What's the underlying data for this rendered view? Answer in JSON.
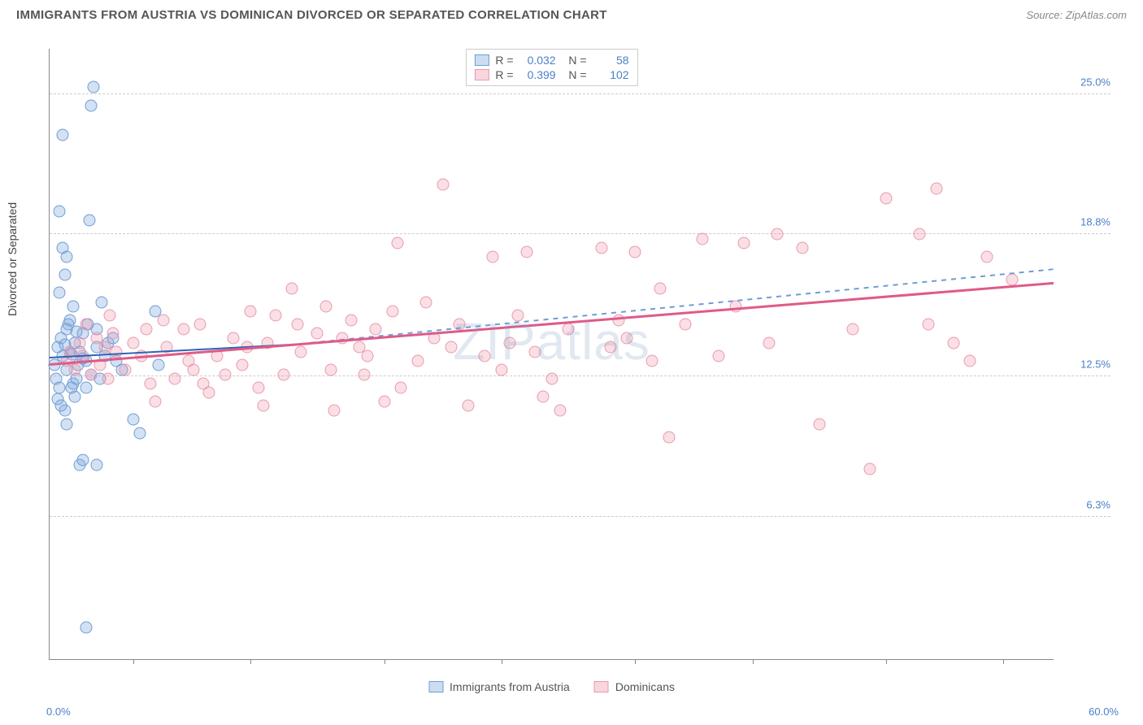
{
  "title": "IMMIGRANTS FROM AUSTRIA VS DOMINICAN DIVORCED OR SEPARATED CORRELATION CHART",
  "source": "Source: ZipAtlas.com",
  "ylabel": "Divorced or Separated",
  "watermark": "ZIPatlas",
  "chart": {
    "type": "scatter",
    "xlim": [
      0,
      60
    ],
    "ylim": [
      0,
      27
    ],
    "xlim_labels": [
      "0.0%",
      "60.0%"
    ],
    "y_gridlines": [
      6.3,
      12.5,
      18.8,
      25.0
    ],
    "y_grid_labels": [
      "6.3%",
      "12.5%",
      "18.8%",
      "25.0%"
    ],
    "x_tick_positions": [
      5,
      12,
      20,
      27,
      35,
      42,
      50,
      57
    ],
    "background_color": "#ffffff",
    "grid_color": "#cccccc",
    "axis_color": "#888888",
    "marker_radius": 7.5,
    "series": [
      {
        "key": "austria",
        "label": "Immigrants from Austria",
        "R": "0.032",
        "N": "58",
        "color_fill": "rgba(130,170,220,0.35)",
        "color_stroke": "#6d9dd6",
        "regression_color": "#2e64b5",
        "regression": {
          "x1": 0,
          "y1": 13.3,
          "x2": 15,
          "y2": 13.9,
          "x_dash_to": 60,
          "y_dash_to": 17.2
        },
        "points": [
          [
            0.3,
            13.0
          ],
          [
            0.4,
            12.4
          ],
          [
            0.5,
            13.8
          ],
          [
            0.6,
            12.0
          ],
          [
            0.7,
            14.2
          ],
          [
            0.5,
            11.5
          ],
          [
            0.8,
            18.2
          ],
          [
            1.0,
            17.8
          ],
          [
            0.6,
            19.8
          ],
          [
            1.2,
            15.0
          ],
          [
            0.9,
            11.0
          ],
          [
            1.0,
            10.4
          ],
          [
            1.3,
            13.5
          ],
          [
            1.5,
            14.0
          ],
          [
            1.0,
            12.8
          ],
          [
            1.4,
            12.2
          ],
          [
            1.8,
            13.6
          ],
          [
            2.0,
            14.4
          ],
          [
            2.2,
            13.2
          ],
          [
            2.5,
            12.6
          ],
          [
            1.5,
            11.6
          ],
          [
            1.7,
            13.0
          ],
          [
            2.8,
            13.8
          ],
          [
            3.0,
            12.4
          ],
          [
            2.3,
            14.8
          ],
          [
            3.3,
            13.4
          ],
          [
            3.5,
            14.0
          ],
          [
            4.0,
            13.2
          ],
          [
            4.3,
            12.8
          ],
          [
            3.8,
            14.2
          ],
          [
            0.8,
            23.2
          ],
          [
            2.5,
            24.5
          ],
          [
            2.6,
            25.3
          ],
          [
            2.4,
            19.4
          ],
          [
            2.8,
            14.6
          ],
          [
            5.0,
            10.6
          ],
          [
            5.4,
            10.0
          ],
          [
            1.8,
            8.6
          ],
          [
            2.0,
            8.8
          ],
          [
            2.8,
            8.6
          ],
          [
            2.2,
            1.4
          ],
          [
            6.3,
            15.4
          ],
          [
            6.5,
            13.0
          ],
          [
            1.2,
            13.6
          ],
          [
            1.6,
            14.5
          ],
          [
            2.0,
            13.3
          ],
          [
            0.6,
            16.2
          ],
          [
            0.9,
            17.0
          ],
          [
            1.1,
            14.8
          ],
          [
            1.3,
            12.0
          ],
          [
            0.8,
            13.4
          ],
          [
            1.0,
            14.6
          ],
          [
            1.4,
            15.6
          ],
          [
            1.6,
            12.4
          ],
          [
            2.2,
            12.0
          ],
          [
            0.7,
            11.2
          ],
          [
            0.9,
            13.9
          ],
          [
            3.1,
            15.8
          ]
        ]
      },
      {
        "key": "dominicans",
        "label": "Dominicans",
        "R": "0.399",
        "N": "102",
        "color_fill": "rgba(240,150,170,0.3)",
        "color_stroke": "#e89ab0",
        "regression_color": "#e05a88",
        "regression": {
          "x1": 0,
          "y1": 13.0,
          "x2": 60,
          "y2": 16.6
        },
        "points": [
          [
            1.0,
            13.2
          ],
          [
            1.2,
            13.6
          ],
          [
            1.5,
            12.8
          ],
          [
            1.8,
            14.0
          ],
          [
            2.0,
            13.4
          ],
          [
            2.5,
            12.6
          ],
          [
            2.8,
            14.2
          ],
          [
            3.0,
            13.0
          ],
          [
            3.3,
            13.8
          ],
          [
            3.5,
            12.4
          ],
          [
            3.8,
            14.4
          ],
          [
            4.0,
            13.6
          ],
          [
            4.5,
            12.8
          ],
          [
            5.0,
            14.0
          ],
          [
            5.5,
            13.4
          ],
          [
            6.0,
            12.2
          ],
          [
            6.3,
            11.4
          ],
          [
            7.0,
            13.8
          ],
          [
            7.5,
            12.4
          ],
          [
            8.0,
            14.6
          ],
          [
            8.3,
            13.2
          ],
          [
            8.6,
            12.8
          ],
          [
            9.0,
            14.8
          ],
          [
            9.5,
            11.8
          ],
          [
            10.0,
            13.4
          ],
          [
            10.5,
            12.6
          ],
          [
            11.0,
            14.2
          ],
          [
            11.5,
            13.0
          ],
          [
            12.0,
            15.4
          ],
          [
            12.5,
            12.0
          ],
          [
            12.8,
            11.2
          ],
          [
            13.0,
            14.0
          ],
          [
            14.0,
            12.6
          ],
          [
            14.5,
            16.4
          ],
          [
            14.8,
            14.8
          ],
          [
            15.0,
            13.6
          ],
          [
            16.0,
            14.4
          ],
          [
            16.5,
            15.6
          ],
          [
            16.8,
            12.8
          ],
          [
            17.5,
            14.2
          ],
          [
            18.0,
            15.0
          ],
          [
            18.5,
            13.8
          ],
          [
            18.8,
            12.6
          ],
          [
            19.5,
            14.6
          ],
          [
            20.0,
            11.4
          ],
          [
            20.5,
            15.4
          ],
          [
            20.8,
            18.4
          ],
          [
            22.0,
            13.2
          ],
          [
            21.0,
            12.0
          ],
          [
            23.0,
            14.2
          ],
          [
            23.5,
            21.0
          ],
          [
            24.0,
            13.8
          ],
          [
            24.5,
            14.8
          ],
          [
            25.0,
            11.2
          ],
          [
            26.0,
            13.4
          ],
          [
            26.5,
            17.8
          ],
          [
            27.0,
            12.8
          ],
          [
            27.5,
            14.0
          ],
          [
            28.0,
            15.2
          ],
          [
            28.5,
            18.0
          ],
          [
            29.0,
            13.6
          ],
          [
            30.0,
            12.4
          ],
          [
            30.5,
            11.0
          ],
          [
            31.0,
            14.6
          ],
          [
            33.0,
            18.2
          ],
          [
            33.5,
            13.8
          ],
          [
            34.0,
            15.0
          ],
          [
            34.5,
            14.2
          ],
          [
            35.0,
            18.0
          ],
          [
            36.0,
            13.2
          ],
          [
            36.5,
            16.4
          ],
          [
            37.0,
            9.8
          ],
          [
            38.0,
            14.8
          ],
          [
            39.0,
            18.6
          ],
          [
            40.0,
            13.4
          ],
          [
            41.0,
            15.6
          ],
          [
            41.5,
            18.4
          ],
          [
            43.0,
            14.0
          ],
          [
            43.5,
            18.8
          ],
          [
            45.0,
            18.2
          ],
          [
            46.0,
            10.4
          ],
          [
            48.0,
            14.6
          ],
          [
            49.0,
            8.4
          ],
          [
            50.0,
            20.4
          ],
          [
            52.0,
            18.8
          ],
          [
            52.5,
            14.8
          ],
          [
            53.0,
            20.8
          ],
          [
            54.0,
            14.0
          ],
          [
            55.0,
            13.2
          ],
          [
            56.0,
            17.8
          ],
          [
            57.5,
            16.8
          ],
          [
            2.2,
            14.8
          ],
          [
            3.6,
            15.2
          ],
          [
            5.8,
            14.6
          ],
          [
            6.8,
            15.0
          ],
          [
            9.2,
            12.2
          ],
          [
            11.8,
            13.8
          ],
          [
            13.5,
            15.2
          ],
          [
            17.0,
            11.0
          ],
          [
            19.0,
            13.4
          ],
          [
            22.5,
            15.8
          ],
          [
            29.5,
            11.6
          ]
        ]
      }
    ]
  },
  "legend_bottom": [
    {
      "key": "austria",
      "label": "Immigrants from Austria"
    },
    {
      "key": "dominicans",
      "label": "Dominicans"
    }
  ]
}
